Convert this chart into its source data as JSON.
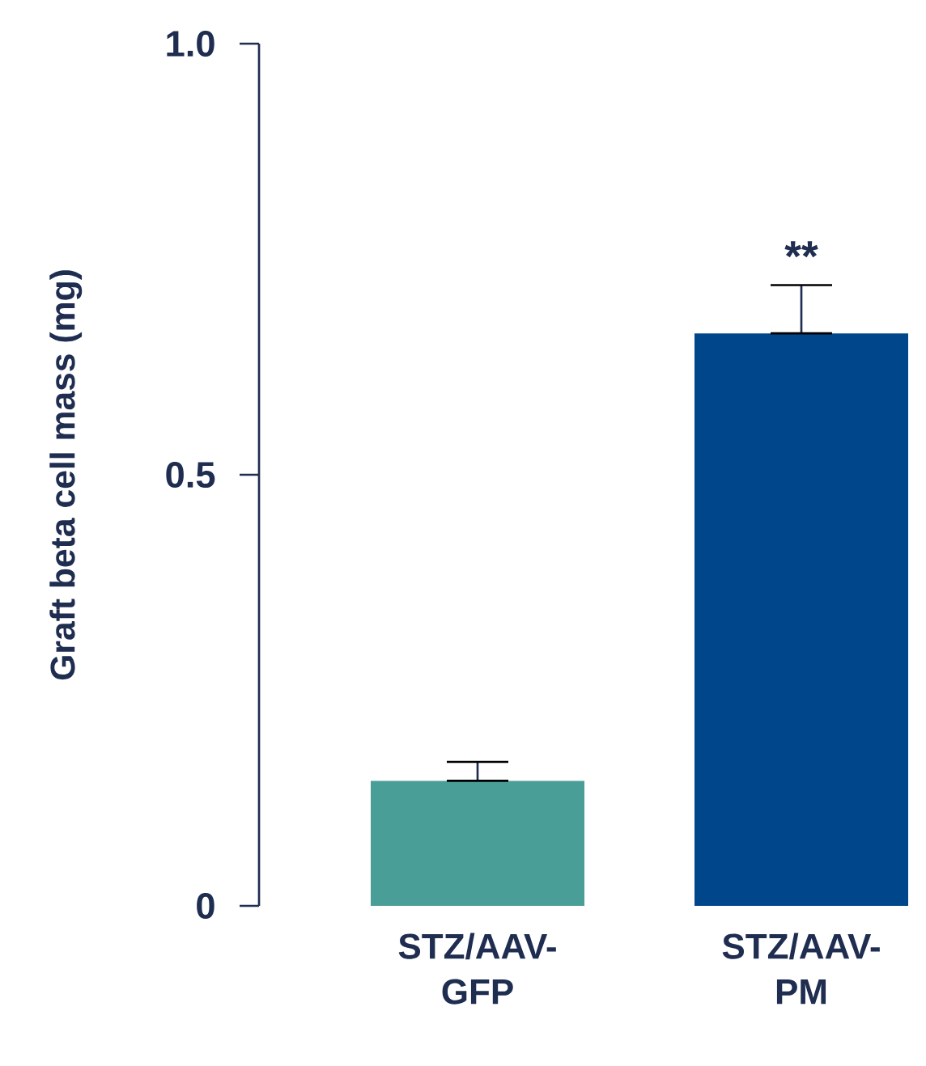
{
  "chart_data": {
    "type": "bar",
    "categories": [
      "STZ/AAV-GFP",
      "STZ/AAV-PM"
    ],
    "values": [
      0.145,
      0.664
    ],
    "colors": [
      "#4a9e98",
      "#00468a"
    ],
    "errors": [
      [
        0.145,
        0.167
      ],
      [
        0.664,
        0.72
      ]
    ],
    "ylabel": "Graft beta cell mass (mg)",
    "ylim": [
      0,
      1
    ],
    "yticks": [
      0,
      0.5,
      {
        "value": 1,
        "label": "1.0"
      }
    ],
    "annotations": [
      {
        "text": "**",
        "x": "STZ/AAV-PM",
        "y": 0.72
      }
    ],
    "grid": false
  }
}
